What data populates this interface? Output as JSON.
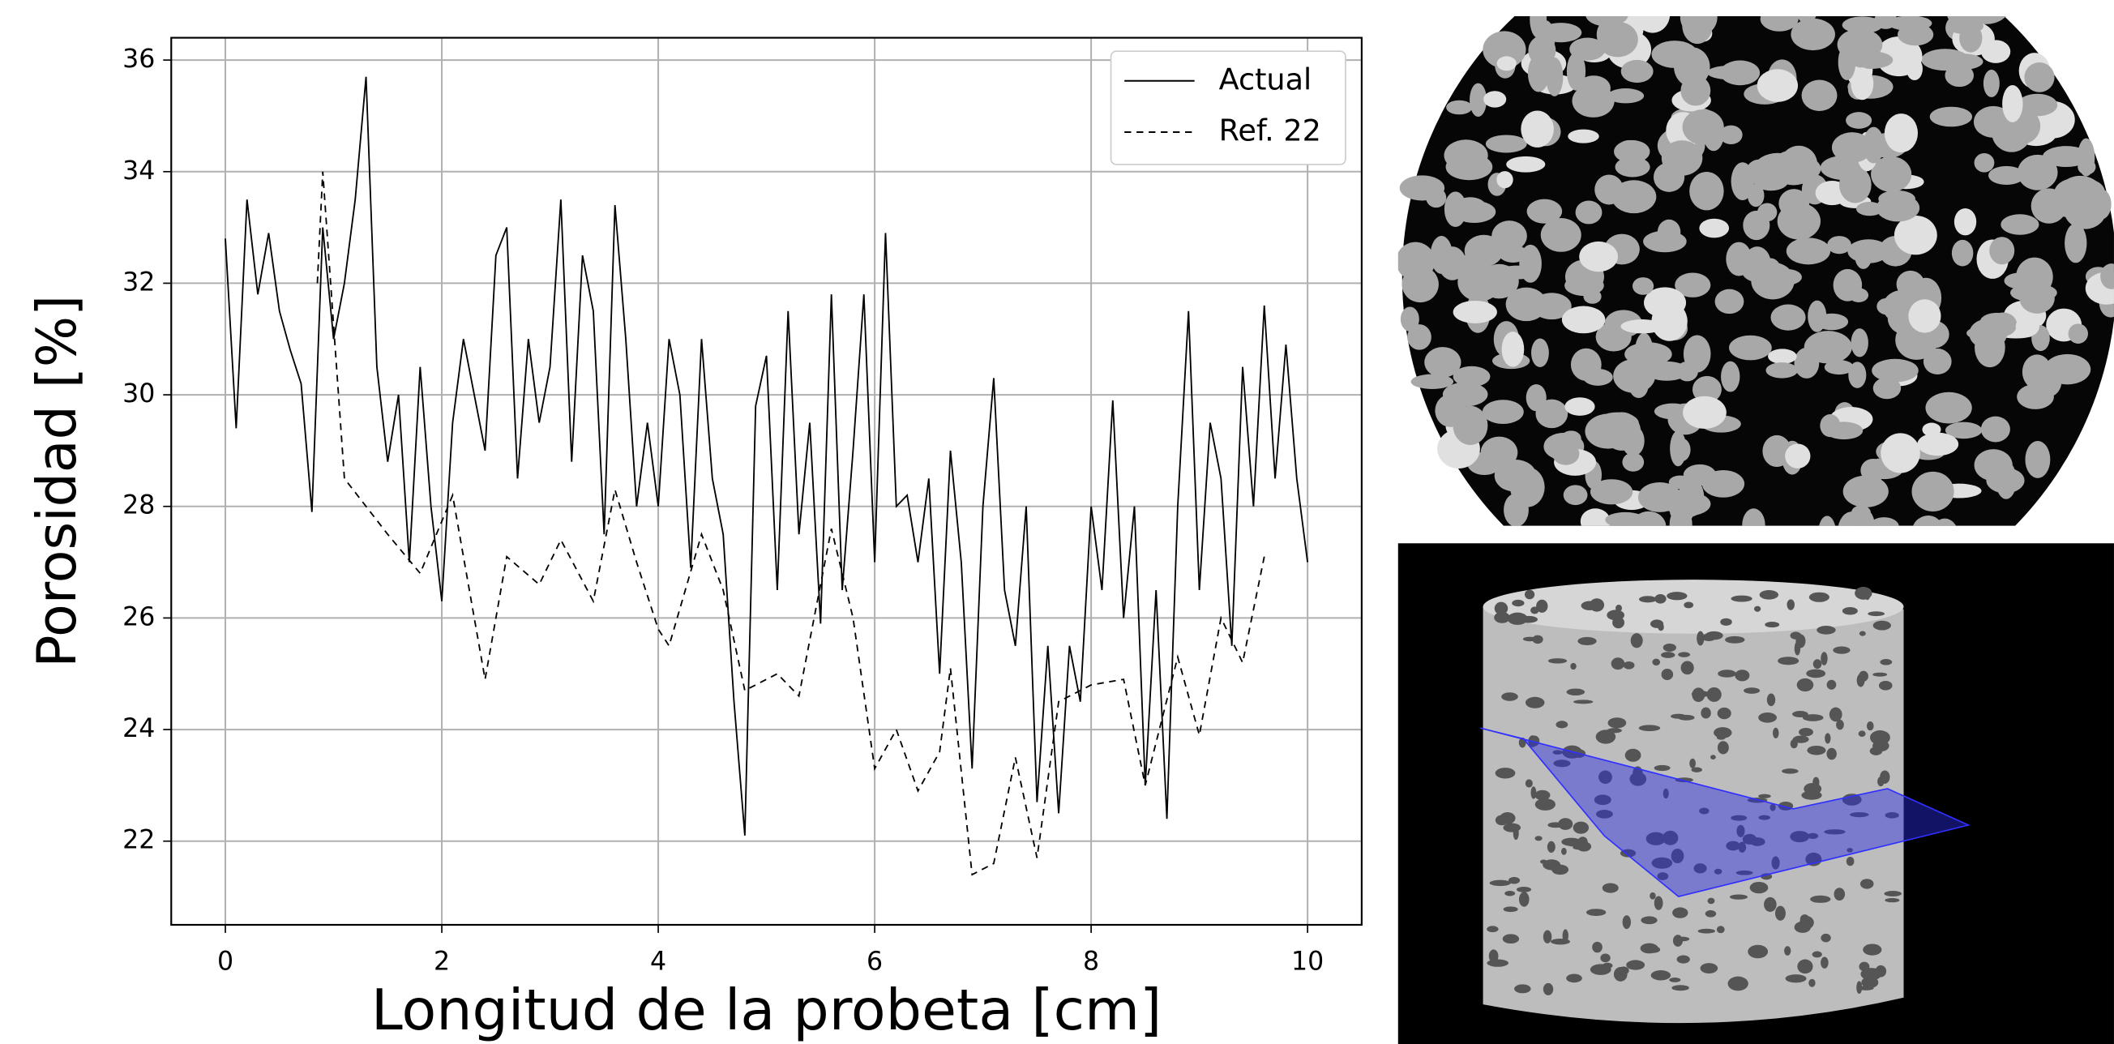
{
  "chart_data": {
    "type": "line",
    "x_label": "Longitud de la probeta [cm]",
    "y_label": "Porosidad [%]",
    "xlim": [
      -0.5,
      10.5
    ],
    "ylim": [
      20.5,
      36.4
    ],
    "xticks": [
      0,
      2,
      4,
      6,
      8,
      10
    ],
    "yticks": [
      22,
      24,
      26,
      28,
      30,
      32,
      34,
      36
    ],
    "grid": true,
    "legend": "upper right",
    "series": [
      {
        "name": "Actual",
        "color": "#000000",
        "style": "solid",
        "x": [
          0,
          0.1,
          0.2,
          0.3,
          0.4,
          0.5,
          0.6,
          0.7,
          0.8,
          0.9,
          1,
          1.1,
          1.2,
          1.3,
          1.4,
          1.5,
          1.6,
          1.7,
          1.8,
          1.9,
          2,
          2.1,
          2.2,
          2.3,
          2.4,
          2.5,
          2.6,
          2.7,
          2.8,
          2.9,
          3,
          3.1,
          3.2,
          3.3,
          3.4,
          3.5,
          3.6,
          3.7,
          3.8,
          3.9,
          4,
          4.1,
          4.2,
          4.3,
          4.4,
          4.5,
          4.6,
          4.7,
          4.8,
          4.9,
          5,
          5.1,
          5.2,
          5.3,
          5.4,
          5.5,
          5.6,
          5.7,
          5.8,
          5.9,
          6,
          6.1,
          6.2,
          6.3,
          6.4,
          6.5,
          6.6,
          6.7,
          6.8,
          6.9,
          7,
          7.1,
          7.2,
          7.3,
          7.4,
          7.5,
          7.6,
          7.7,
          7.8,
          7.9,
          8,
          8.1,
          8.2,
          8.3,
          8.4,
          8.5,
          8.6,
          8.7,
          8.8,
          8.9,
          9,
          9.1,
          9.2,
          9.3,
          9.4,
          9.5,
          9.6,
          9.7,
          9.8,
          9.9,
          10
        ],
        "values": [
          32.8,
          29.4,
          33.5,
          31.8,
          32.9,
          31.5,
          30.8,
          30.2,
          27.9,
          33.0,
          31.0,
          32.0,
          33.5,
          35.7,
          30.5,
          28.8,
          30.0,
          27.0,
          30.5,
          28.0,
          26.3,
          29.5,
          31.0,
          30.0,
          29.0,
          32.5,
          33.0,
          28.5,
          31.0,
          29.5,
          30.5,
          33.5,
          28.8,
          32.5,
          31.5,
          27.5,
          33.4,
          31.0,
          28.0,
          29.5,
          28.0,
          31.0,
          30.0,
          26.9,
          31.0,
          28.5,
          27.5,
          24.5,
          22.1,
          29.8,
          30.7,
          26.5,
          31.5,
          27.5,
          29.5,
          25.9,
          31.8,
          26.5,
          29.0,
          31.8,
          27.0,
          32.9,
          28.0,
          28.2,
          27.0,
          28.5,
          25.0,
          29.0,
          27.0,
          23.3,
          28.0,
          30.3,
          26.5,
          25.5,
          28.0,
          22.7,
          25.5,
          22.5,
          25.5,
          24.5,
          28.0,
          26.5,
          29.9,
          26.0,
          28.0,
          23.0,
          26.5,
          22.4,
          28.0,
          31.5,
          26.5,
          29.5,
          28.5,
          25.5,
          30.5,
          28.0,
          31.6,
          28.5,
          30.9,
          28.5,
          27.0
        ]
      },
      {
        "name": "Ref. 22",
        "color": "#000000",
        "style": "dashed",
        "x": [
          0.85,
          0.9,
          1.1,
          1.5,
          1.8,
          2.1,
          2.4,
          2.6,
          2.9,
          3.1,
          3.4,
          3.6,
          3.8,
          4.0,
          4.1,
          4.4,
          4.6,
          4.8,
          5.1,
          5.3,
          5.6,
          5.8,
          6.0,
          6.2,
          6.4,
          6.6,
          6.7,
          6.9,
          7.1,
          7.3,
          7.5,
          7.7,
          8.0,
          8.3,
          8.5,
          8.8,
          9.0,
          9.2,
          9.4,
          9.6
        ],
        "values": [
          32.0,
          34.0,
          28.5,
          27.5,
          26.8,
          28.2,
          24.9,
          27.1,
          26.6,
          27.4,
          26.3,
          28.3,
          27.0,
          25.8,
          25.5,
          27.5,
          26.5,
          24.7,
          25.0,
          24.6,
          27.6,
          26.0,
          23.3,
          24.0,
          22.9,
          23.6,
          25.1,
          21.4,
          21.6,
          23.5,
          21.7,
          24.5,
          24.8,
          24.9,
          23.0,
          25.3,
          23.9,
          26.0,
          25.2,
          27.1
        ]
      }
    ]
  }
}
